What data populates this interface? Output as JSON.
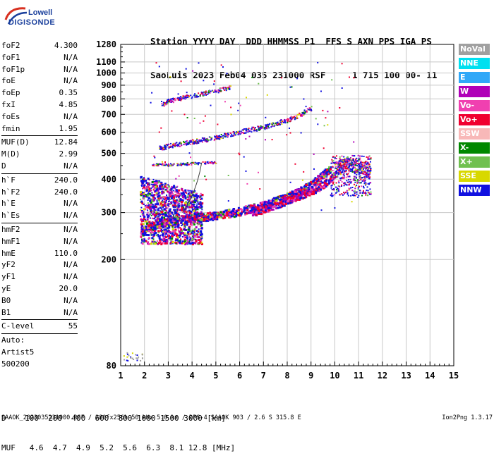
{
  "logo": {
    "line1": "Lowell",
    "line2": "DIGISONDE"
  },
  "header": {
    "line1": "Station YYYY DAY  DDD HHMMSS P1  FFS S AXN PPS IGA PS",
    "line2": "SaoLuis 2023 Feb04 035 231000 RSF     1 715 100 00- 11"
  },
  "params": [
    {
      "name": "foF2",
      "value": "4.300"
    },
    {
      "name": "foF1",
      "value": "N/A"
    },
    {
      "name": "foF1p",
      "value": "N/A"
    },
    {
      "name": "foE",
      "value": "N/A"
    },
    {
      "name": "foEp",
      "value": "0.35"
    },
    {
      "name": "fxI",
      "value": "4.85"
    },
    {
      "name": "foEs",
      "value": "N/A"
    },
    {
      "name": "fmin",
      "value": "1.95"
    },
    {
      "sep": true
    },
    {
      "name": "MUF(D)",
      "value": "12.84"
    },
    {
      "name": "M(D)",
      "value": "2.99"
    },
    {
      "name": "D",
      "value": "N/A"
    },
    {
      "sep": true
    },
    {
      "name": "h`F",
      "value": "240.0"
    },
    {
      "name": "h`F2",
      "value": "240.0"
    },
    {
      "name": "h`E",
      "value": "N/A"
    },
    {
      "name": "h`Es",
      "value": "N/A"
    },
    {
      "sep": true
    },
    {
      "name": "hmF2",
      "value": "N/A"
    },
    {
      "name": "hmF1",
      "value": "N/A"
    },
    {
      "name": "hmE",
      "value": "110.0"
    },
    {
      "name": "yF2",
      "value": "N/A"
    },
    {
      "name": "yF1",
      "value": "N/A"
    },
    {
      "name": "yE",
      "value": "20.0"
    },
    {
      "name": "B0",
      "value": "N/A"
    },
    {
      "name": "B1",
      "value": "N/A"
    },
    {
      "sep": true
    },
    {
      "name": "C-level",
      "value": "55"
    },
    {
      "sep": true
    },
    {
      "name": "Auto:",
      "value": ""
    },
    {
      "name": "Artist5",
      "value": ""
    },
    {
      "name": "500200",
      "value": ""
    }
  ],
  "legend": [
    {
      "label": "NoVal",
      "color": "#a0a0a0"
    },
    {
      "label": "NNE",
      "color": "#00e0f0"
    },
    {
      "label": "E",
      "color": "#30a8f8"
    },
    {
      "label": "W",
      "color": "#b000b8"
    },
    {
      "label": "Vo-",
      "color": "#f040b0"
    },
    {
      "label": "Vo+",
      "color": "#f00030"
    },
    {
      "label": "SSW",
      "color": "#f8b8b8"
    },
    {
      "label": "X-",
      "color": "#008800"
    },
    {
      "label": "X+",
      "color": "#70c050"
    },
    {
      "label": "SSE",
      "color": "#d8d800"
    },
    {
      "label": "NNW",
      "color": "#1010e0"
    }
  ],
  "bottom": {
    "line1": "D    100  200  400  600  800 1000 1500 3000 [km]",
    "line2": "MUF   4.6  4.7  4.9  5.2  5.6  6.3  8.1 12.8 [MHz]"
  },
  "footer": {
    "left": "SAAOK_2023035231000.RSF / 280fx256h 50 kHz 5.0 km / DPS-4 SAAOK 903 / 2.6 S 315.8 E",
    "right": "Ion2Png 1.3.17"
  },
  "chart_data": {
    "type": "scatter",
    "x_ticks": [
      "1",
      "2",
      "3",
      "4",
      "5",
      "6",
      "7",
      "8",
      "9",
      "10",
      "11",
      "12",
      "13",
      "14",
      "15"
    ],
    "xlim": [
      1,
      15
    ],
    "y_ticks": [
      "80",
      "200",
      "300",
      "400",
      "500",
      "600",
      "700",
      "800",
      "900",
      "1000",
      "1100",
      "1280"
    ],
    "y_tick_values": [
      80,
      200,
      300,
      400,
      500,
      600,
      700,
      800,
      900,
      1000,
      1100,
      1280
    ],
    "ylim": [
      80,
      1280
    ],
    "y_scale": "log",
    "grid": true,
    "traces": [
      {
        "name": "O-trace-1F",
        "points": [
          [
            1.9,
            260
          ],
          [
            2.5,
            272
          ],
          [
            3,
            280
          ],
          [
            3.5,
            284
          ],
          [
            4,
            288
          ],
          [
            5,
            294
          ],
          [
            6,
            305
          ],
          [
            7,
            322
          ],
          [
            8,
            345
          ],
          [
            8.5,
            362
          ],
          [
            9,
            385
          ],
          [
            9.5,
            420
          ],
          [
            9.8,
            440
          ]
        ]
      },
      {
        "name": "X-trace-1F",
        "points": [
          [
            6.5,
            300
          ],
          [
            7.5,
            320
          ],
          [
            8.2,
            340
          ],
          [
            9.2,
            370
          ],
          [
            9.7,
            395
          ],
          [
            10,
            420
          ]
        ]
      },
      {
        "name": "O-trace-2F",
        "points": [
          [
            2.6,
            525
          ],
          [
            3,
            535
          ],
          [
            4,
            555
          ],
          [
            5,
            575
          ],
          [
            6,
            605
          ],
          [
            7,
            630
          ],
          [
            8,
            670
          ],
          [
            8.5,
            700
          ],
          [
            9,
            740
          ]
        ]
      },
      {
        "name": "O-trace-3F",
        "points": [
          [
            2.7,
            760
          ],
          [
            3,
            790
          ],
          [
            4,
            825
          ],
          [
            5,
            860
          ],
          [
            5.6,
            890
          ]
        ]
      },
      {
        "name": "es-trace",
        "points": [
          [
            2.3,
            455
          ],
          [
            3,
            455
          ],
          [
            4,
            460
          ],
          [
            5,
            465
          ]
        ]
      },
      {
        "name": "spread-cluster",
        "points": [
          [
            10,
            440
          ],
          [
            10.5,
            460
          ],
          [
            11,
            450
          ],
          [
            11.5,
            430
          ]
        ]
      }
    ]
  }
}
